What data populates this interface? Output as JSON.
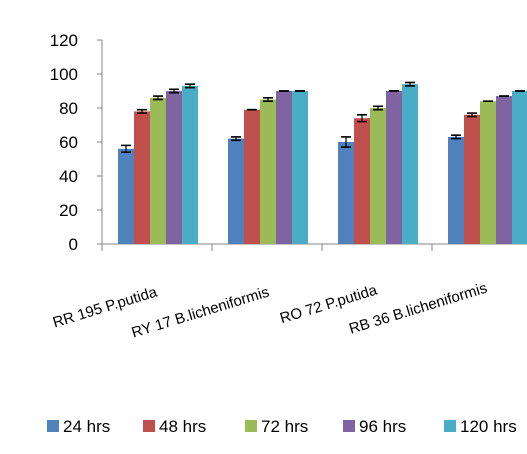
{
  "chart_data": {
    "type": "bar",
    "categories": [
      "RR 195 P.putida",
      "RY 17  B.licheniformis",
      "RO 72 P.putida",
      "RB 36 B.licheniformis"
    ],
    "series": [
      {
        "name": "24 hrs",
        "color": "#4F81BD",
        "values": [
          56,
          62,
          60,
          63
        ],
        "errors": [
          2,
          1,
          3,
          1
        ]
      },
      {
        "name": "48 hrs",
        "color": "#C0504D",
        "values": [
          78,
          79,
          74,
          76
        ],
        "errors": [
          1,
          0,
          2,
          1
        ]
      },
      {
        "name": "72 hrs",
        "color": "#9BBB59",
        "values": [
          86,
          85,
          80,
          84
        ],
        "errors": [
          1,
          1,
          1,
          0
        ]
      },
      {
        "name": "96 hrs",
        "color": "#8064A2",
        "values": [
          90,
          90,
          90,
          87
        ],
        "errors": [
          1,
          0,
          0,
          0
        ]
      },
      {
        "name": "120 hrs",
        "color": "#4BACC6",
        "values": [
          93,
          90,
          94,
          90
        ],
        "errors": [
          1,
          0,
          1,
          0
        ]
      }
    ],
    "ylim": [
      0,
      120
    ],
    "yticks": [
      0,
      20,
      40,
      60,
      80,
      100,
      120
    ],
    "title": "",
    "xlabel": "",
    "ylabel": "",
    "grid": false,
    "legend_position": "bottom"
  }
}
